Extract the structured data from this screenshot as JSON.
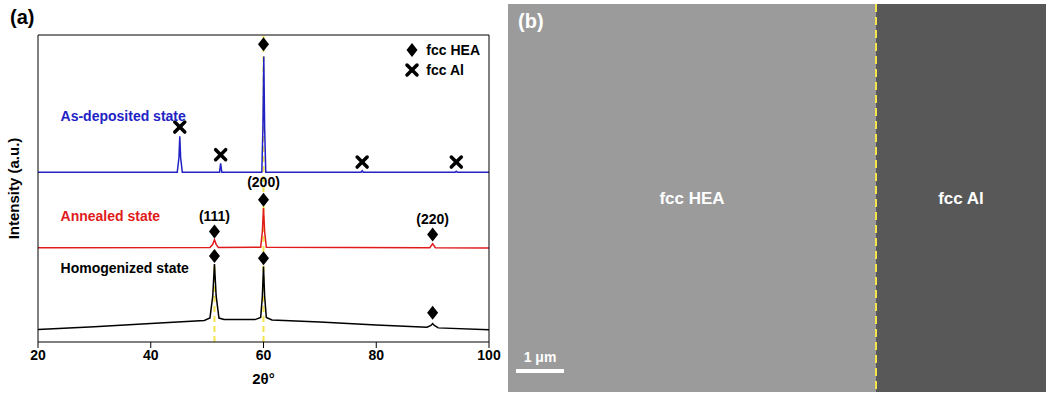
{
  "chart_data": {
    "type": "line",
    "panel_label": "(a)",
    "xlabel": "2θ°",
    "ylabel": "Intensity (a.u.)",
    "xlim": [
      20,
      100
    ],
    "xticks": [
      20,
      40,
      60,
      80,
      100
    ],
    "ylim": [
      0,
      100
    ],
    "yticks": [],
    "tick_labels": "x",
    "legend": "upper right",
    "series": [
      {
        "name": "As-deposited state",
        "color": "#2222c4",
        "label_at": [
          24,
          72
        ],
        "x": [
          20,
          44.7,
          45.0,
          45.15,
          45.3,
          45.6,
          52.2,
          52.4,
          52.6,
          59.7,
          59.9,
          60.05,
          60.2,
          60.4,
          77.3,
          77.5,
          77.7,
          94.0,
          94.2,
          94.4,
          100
        ],
        "values": [
          55.3,
          55.3,
          60,
          67,
          60,
          55.3,
          55.3,
          58.2,
          55.3,
          55.3,
          70,
          93,
          70,
          55.3,
          55.3,
          55.8,
          55.3,
          55.3,
          55.6,
          55.3,
          55.3
        ]
      },
      {
        "name": "Annealed state",
        "color": "#e01b1b",
        "label_at": [
          24,
          39.5
        ],
        "x": [
          20,
          50.5,
          51.0,
          51.3,
          51.6,
          52.0,
          59.5,
          59.8,
          60.0,
          60.2,
          60.5,
          89.5,
          90.0,
          90.5,
          100
        ],
        "values": [
          30.7,
          30.8,
          31.8,
          33.3,
          31.8,
          30.8,
          30.9,
          36,
          43.6,
          36,
          30.9,
          30.7,
          32.0,
          30.7,
          30.6
        ]
      },
      {
        "name": "Homogenized state",
        "color": "#000000",
        "label_at": [
          24,
          22.5
        ],
        "x": [
          20,
          30,
          40,
          49.5,
          50.5,
          51.0,
          51.3,
          51.6,
          52.1,
          53,
          58.5,
          59.5,
          59.8,
          60.0,
          60.2,
          60.5,
          61.5,
          70,
          80,
          89,
          89.7,
          90.0,
          90.3,
          91,
          100
        ],
        "values": [
          4.1,
          5.0,
          6.0,
          7.0,
          7.8,
          15,
          25.4,
          15,
          7.8,
          7.3,
          7.3,
          8,
          15,
          24.6,
          15,
          8,
          7.2,
          6.5,
          5.5,
          4.8,
          5.4,
          6.0,
          5.4,
          4.6,
          4.0
        ]
      }
    ],
    "peak_markers": [
      {
        "name": "fcc HEA",
        "marker": "diamond",
        "color": "#000000",
        "points": [
          {
            "x": 60,
            "y": 97
          },
          {
            "x": 51.3,
            "y": 36
          },
          {
            "x": 60,
            "y": 46.3
          },
          {
            "x": 90,
            "y": 35
          },
          {
            "x": 51.3,
            "y": 28
          },
          {
            "x": 60,
            "y": 27.3
          },
          {
            "x": 90,
            "y": 9.5
          }
        ]
      },
      {
        "name": "fcc Al",
        "marker": "cross",
        "color": "#000000",
        "points": [
          {
            "x": 45.15,
            "y": 70
          },
          {
            "x": 52.4,
            "y": 61
          },
          {
            "x": 77.5,
            "y": 58.6
          },
          {
            "x": 94.2,
            "y": 58.6
          }
        ]
      }
    ],
    "annotations": [
      {
        "text": "(111)",
        "x": 51.3,
        "y": 39.5
      },
      {
        "text": "(200)",
        "x": 60,
        "y": 50.5
      },
      {
        "text": "(220)",
        "x": 90,
        "y": 38.5
      }
    ],
    "vlines": [
      {
        "x": 51.3,
        "y": [
          0,
          30
        ],
        "color": "#f2e44b",
        "line_style": "dashed"
      },
      {
        "x": 60,
        "y": [
          0,
          100
        ],
        "color": "#f2e44b",
        "line_style": "dashed"
      }
    ]
  },
  "image_panel": {
    "panel_label": "(b)",
    "regions": [
      {
        "text": "fcc HEA",
        "color": "#9b9b9b"
      },
      {
        "text": "fcc Al",
        "color": "#585858"
      }
    ],
    "boundary_color": "#f2e44b",
    "boundary_style": "dashed",
    "scale_bar": "1 μm"
  }
}
